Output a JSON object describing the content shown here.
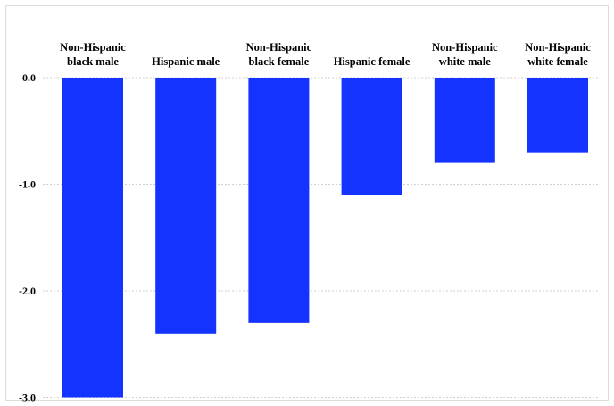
{
  "chart_data": {
    "type": "bar",
    "categories": [
      [
        "Non-Hispanic",
        "black male"
      ],
      [
        "Hispanic male"
      ],
      [
        "Non-Hispanic",
        "black female"
      ],
      [
        "Hispanic female"
      ],
      [
        "Non-Hispanic",
        "white male"
      ],
      [
        "Non-Hispanic",
        "white female"
      ]
    ],
    "values": [
      -3.0,
      -2.4,
      -2.3,
      -1.1,
      -0.8,
      -0.7
    ],
    "yticks": [
      0.0,
      -1.0,
      -2.0,
      -3.0
    ],
    "ytick_labels": [
      "0.0",
      "-1.0",
      "-2.0",
      "-3.0"
    ],
    "ylim": [
      -3.0,
      0.0
    ],
    "bar_color": "#1433ff",
    "grid": true,
    "grid_color": "#d0d0d0",
    "legend": "none"
  }
}
